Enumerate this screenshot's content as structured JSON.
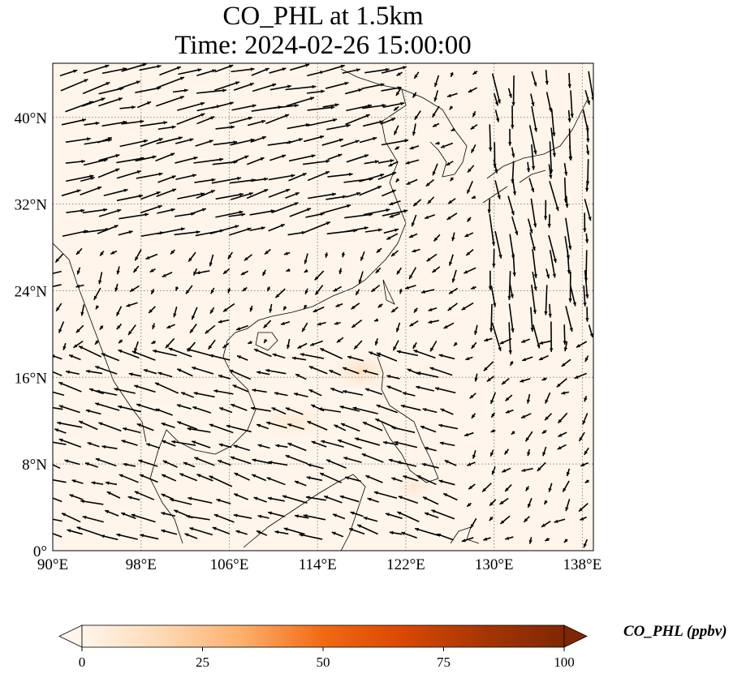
{
  "title": {
    "line1": "CO_PHL at 1.5km",
    "line2": "Time: 2024-02-26 15:00:00"
  },
  "map": {
    "lon_range": [
      90,
      139
    ],
    "lat_range": [
      0,
      45
    ],
    "lon_ticks": [
      90,
      98,
      106,
      114,
      122,
      130,
      138
    ],
    "lon_tick_labels": [
      "90°E",
      "98°E",
      "106°E",
      "114°E",
      "122°E",
      "130°E",
      "138°E"
    ],
    "lat_ticks": [
      0,
      8,
      16,
      24,
      32,
      40
    ],
    "lat_tick_labels": [
      "0°",
      "8°N",
      "16°N",
      "24°N",
      "32°N",
      "40°N"
    ],
    "gridlines": "dotted",
    "background_color": "#fff5eb"
  },
  "colorbar": {
    "label": "CO_PHL (ppbv)",
    "ticks": [
      0,
      25,
      50,
      75,
      100
    ],
    "tick_labels": [
      "0",
      "25",
      "50",
      "75",
      "100"
    ],
    "colormap": [
      "#fff5eb",
      "#fdd9b3",
      "#fdae6b",
      "#f16913",
      "#d94801",
      "#a63603",
      "#7f2704"
    ],
    "extend": "both"
  }
}
